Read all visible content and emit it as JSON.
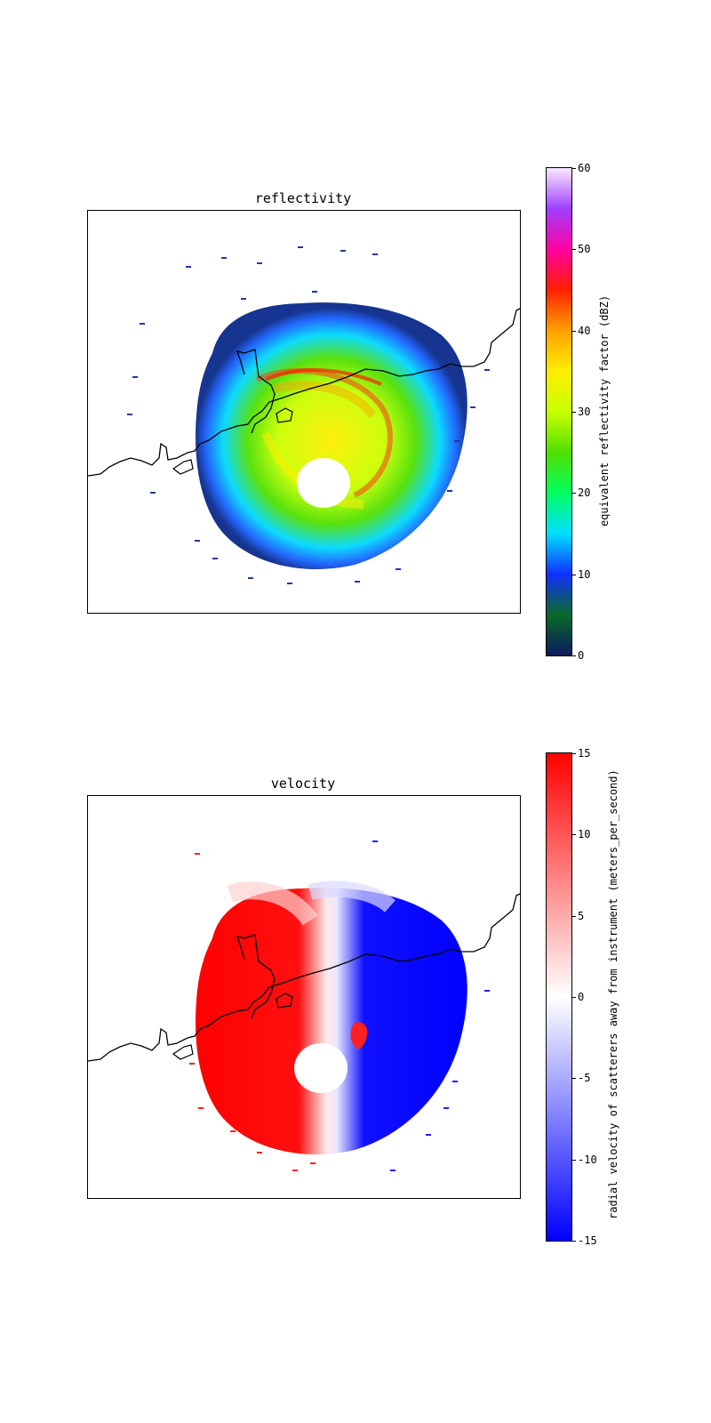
{
  "chart_data": [
    {
      "type": "heatmap",
      "title": "reflectivity",
      "colorbar": {
        "label": "equivalent reflectivity factor (dBZ)",
        "range": [
          0,
          60
        ],
        "ticks": [
          0,
          10,
          20,
          30,
          40,
          50,
          60
        ],
        "colors": [
          "#0b1a5e",
          "#0a6a2a",
          "#1030ff",
          "#00e0ff",
          "#00ff60",
          "#50e000",
          "#c8ff00",
          "#ffee00",
          "#ffa000",
          "#ff2000",
          "#ff00a0",
          "#a040ff",
          "#f8e8ff"
        ]
      },
      "field_description_colors": {
        "core": "#ff3a1a",
        "band": "#50e000",
        "outer": "#1860ff",
        "edge": "#0a2a8a"
      }
    },
    {
      "type": "heatmap",
      "title": "velocity",
      "colorbar": {
        "label": "radial velocity of scatterers away from instrument (meters_per_second)",
        "range": [
          -15,
          15
        ],
        "ticks": [
          -15,
          -10,
          -5,
          0,
          5,
          10,
          15
        ],
        "colors": [
          "#0000ff",
          "#ffffff",
          "#ff0000"
        ]
      }
    }
  ]
}
